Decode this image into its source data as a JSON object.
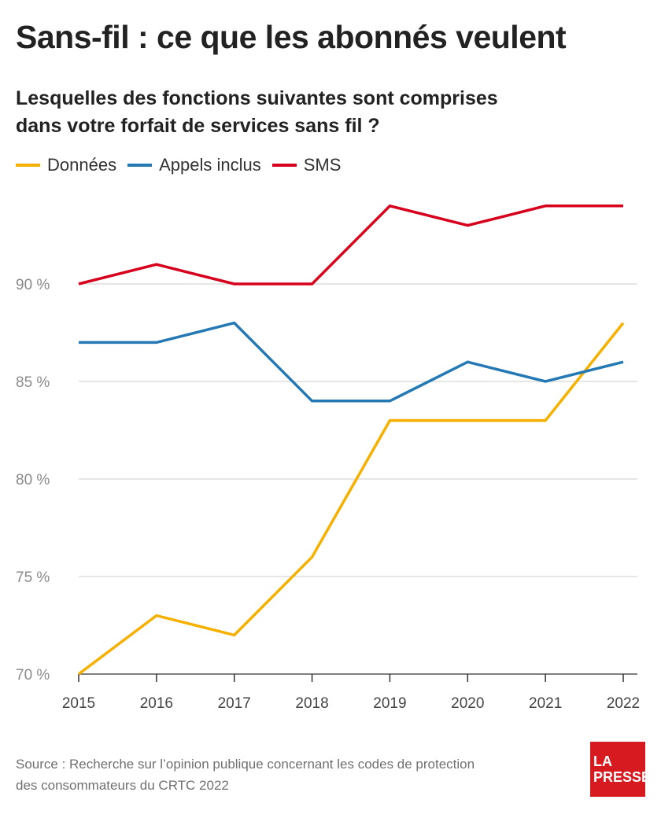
{
  "header": {
    "title": "Sans-fil : ce que les abonnés veulent",
    "subtitle_line1": "Lesquelles des fonctions suivantes sont comprises",
    "subtitle_line2": "dans votre forfait de services sans fil ?"
  },
  "legend": [
    {
      "label": "Données",
      "color": "#f6b000"
    },
    {
      "label": "Appels inclus",
      "color": "#2479b4"
    },
    {
      "label": "SMS",
      "color": "#d7001d"
    }
  ],
  "chart_data": {
    "type": "line",
    "title": "Sans-fil : ce que les abonnés veulent",
    "subtitle": "Lesquelles des fonctions suivantes sont comprises dans votre forfait de services sans fil ?",
    "x": [
      "2015",
      "2016",
      "2017",
      "2018",
      "2019",
      "2020",
      "2021",
      "2022"
    ],
    "ylim": [
      70,
      95
    ],
    "y_ticks": [
      70,
      75,
      80,
      85,
      90
    ],
    "y_tick_labels": [
      "70 %",
      "75 %",
      "80 %",
      "85 %",
      "90 %"
    ],
    "grid": true,
    "legend_position": "top-left",
    "series": [
      {
        "name": "Données",
        "color": "#f6b000",
        "values": [
          70,
          73,
          72,
          76,
          83,
          83,
          83,
          88
        ]
      },
      {
        "name": "Appels inclus",
        "color": "#2479b4",
        "values": [
          87,
          87,
          88,
          84,
          84,
          86,
          85,
          86
        ]
      },
      {
        "name": "SMS",
        "color": "#d7001d",
        "values": [
          90,
          91,
          90,
          90,
          94,
          93,
          94,
          94
        ]
      }
    ]
  },
  "footer": {
    "source_line1": "Source : Recherche sur l’opinion publique concernant les codes de protection",
    "source_line2": "des consommateurs du CRTC 2022",
    "logo_line1": "LA",
    "logo_line2": "PRESSE"
  }
}
